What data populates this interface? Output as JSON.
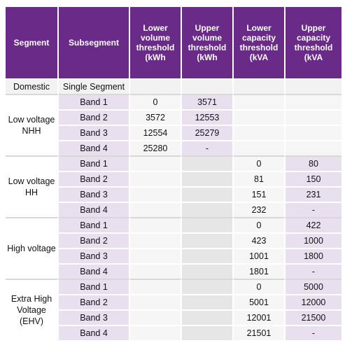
{
  "headers": [
    "Segment",
    "Subsegment",
    "Lower volume threshold (kWh",
    "Upper volume threshold (kWh",
    "Lower capacity threshold (kVA",
    "Upper capacity threshold (kVA"
  ],
  "domestic": {
    "segment": "Domestic",
    "subsegment": "Single Segment"
  },
  "groups": [
    {
      "segment": "Low voltage NHH",
      "rows": [
        {
          "band": "Band 1",
          "lv": "0",
          "uv": "3571",
          "lc": "",
          "uc": ""
        },
        {
          "band": "Band 2",
          "lv": "3572",
          "uv": "12553",
          "lc": "",
          "uc": ""
        },
        {
          "band": "Band 3",
          "lv": "12554",
          "uv": "25279",
          "lc": "",
          "uc": ""
        },
        {
          "band": "Band 4",
          "lv": "25280",
          "uv": "-",
          "lc": "",
          "uc": ""
        }
      ]
    },
    {
      "segment": "Low voltage HH",
      "rows": [
        {
          "band": "Band 1",
          "lv": "",
          "uv": "",
          "lc": "0",
          "uc": "80"
        },
        {
          "band": "Band 2",
          "lv": "",
          "uv": "",
          "lc": "81",
          "uc": "150"
        },
        {
          "band": "Band 3",
          "lv": "",
          "uv": "",
          "lc": "151",
          "uc": "231"
        },
        {
          "band": "Band 4",
          "lv": "",
          "uv": "",
          "lc": "232",
          "uc": "-"
        }
      ]
    },
    {
      "segment": "High voltage",
      "rows": [
        {
          "band": "Band 1",
          "lv": "",
          "uv": "",
          "lc": "0",
          "uc": "422"
        },
        {
          "band": "Band 2",
          "lv": "",
          "uv": "",
          "lc": "423",
          "uc": "1000"
        },
        {
          "band": "Band 3",
          "lv": "",
          "uv": "",
          "lc": "1001",
          "uc": "1800"
        },
        {
          "band": "Band 4",
          "lv": "",
          "uv": "",
          "lc": "1801",
          "uc": "-"
        }
      ]
    },
    {
      "segment": "Extra High Voltage (EHV)",
      "rows": [
        {
          "band": "Band 1",
          "lv": "",
          "uv": "",
          "lc": "0",
          "uc": "5000"
        },
        {
          "band": "Band 2",
          "lv": "",
          "uv": "",
          "lc": "5001",
          "uc": "12000"
        },
        {
          "band": "Band 3",
          "lv": "",
          "uv": "",
          "lc": "12001",
          "uc": "21500"
        },
        {
          "band": "Band 4",
          "lv": "",
          "uv": "",
          "lc": "21501",
          "uc": "-"
        }
      ]
    }
  ]
}
